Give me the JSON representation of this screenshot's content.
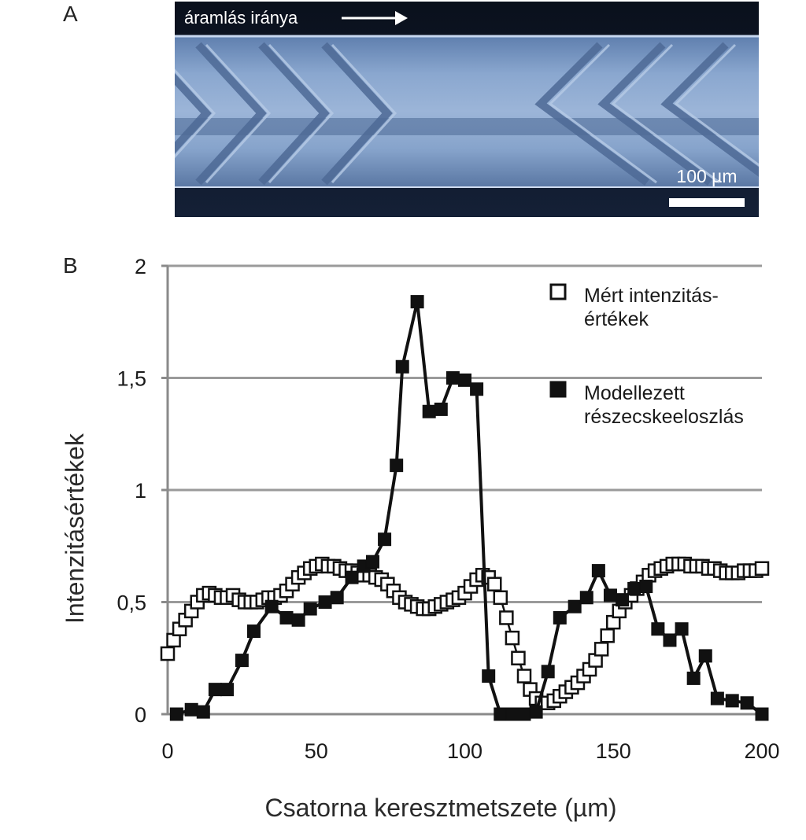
{
  "panel_a": {
    "label": "A",
    "flow_label": "áramlás iránya",
    "scale_bar_label": "100 µm"
  },
  "panel_b": {
    "label": "B"
  },
  "colors": {
    "channel_dark": "#0c1424",
    "channel_blue": "#7f9dc6",
    "series_line": "#111111",
    "grid": "#9a9a9a"
  },
  "chart_data": {
    "type": "line",
    "title": "",
    "xlabel": "Csatorna keresztmetszete (µm)",
    "ylabel": "Intenzitásértékek",
    "xlim": [
      0,
      200
    ],
    "ylim": [
      0,
      2
    ],
    "x_ticks": [
      0,
      50,
      100,
      150,
      200
    ],
    "y_ticks": [
      0,
      0.5,
      1,
      1.5,
      2
    ],
    "x_tick_labels": [
      "0",
      "50",
      "100",
      "150",
      "200"
    ],
    "y_tick_labels": [
      "0",
      "0,5",
      "1",
      "1,5",
      "2"
    ],
    "grid": "horizontal",
    "legend_position": "top-right",
    "series": [
      {
        "name": "Mért intenzitás-értékek",
        "marker": "open-square",
        "x": [
          0,
          2,
          4,
          6,
          8,
          10,
          12,
          14,
          16,
          18,
          20,
          22,
          24,
          26,
          28,
          30,
          32,
          34,
          36,
          38,
          40,
          42,
          44,
          46,
          48,
          50,
          52,
          54,
          56,
          58,
          60,
          62,
          64,
          66,
          68,
          70,
          72,
          74,
          76,
          78,
          80,
          82,
          84,
          86,
          88,
          90,
          92,
          94,
          96,
          98,
          100,
          102,
          104,
          106,
          108,
          110,
          112,
          114,
          116,
          118,
          120,
          122,
          124,
          126,
          128,
          130,
          132,
          134,
          136,
          138,
          140,
          142,
          144,
          146,
          148,
          150,
          152,
          154,
          156,
          158,
          160,
          162,
          164,
          166,
          168,
          170,
          172,
          174,
          176,
          178,
          180,
          182,
          184,
          186,
          188,
          190,
          192,
          194,
          196,
          198,
          200
        ],
        "y": [
          0.27,
          0.33,
          0.38,
          0.42,
          0.46,
          0.5,
          0.53,
          0.54,
          0.53,
          0.52,
          0.52,
          0.53,
          0.51,
          0.5,
          0.5,
          0.5,
          0.51,
          0.52,
          0.52,
          0.53,
          0.55,
          0.58,
          0.61,
          0.63,
          0.65,
          0.66,
          0.67,
          0.66,
          0.66,
          0.65,
          0.64,
          0.64,
          0.63,
          0.62,
          0.62,
          0.61,
          0.6,
          0.58,
          0.55,
          0.52,
          0.5,
          0.49,
          0.48,
          0.47,
          0.47,
          0.48,
          0.49,
          0.5,
          0.51,
          0.52,
          0.54,
          0.57,
          0.6,
          0.62,
          0.61,
          0.58,
          0.52,
          0.43,
          0.34,
          0.25,
          0.17,
          0.11,
          0.07,
          0.05,
          0.05,
          0.06,
          0.08,
          0.1,
          0.12,
          0.14,
          0.17,
          0.2,
          0.24,
          0.29,
          0.35,
          0.41,
          0.46,
          0.5,
          0.53,
          0.56,
          0.59,
          0.62,
          0.64,
          0.65,
          0.66,
          0.67,
          0.67,
          0.67,
          0.66,
          0.66,
          0.66,
          0.65,
          0.65,
          0.64,
          0.63,
          0.63,
          0.63,
          0.64,
          0.64,
          0.64,
          0.65
        ]
      },
      {
        "name": "Modellezett részecskeeloszlás",
        "marker": "filled-square",
        "x": [
          3,
          8,
          12,
          16,
          20,
          25,
          29,
          35,
          40,
          44,
          48,
          53,
          57,
          62,
          66,
          69,
          73,
          77,
          79,
          84,
          88,
          92,
          96,
          100,
          104,
          108,
          112,
          116,
          120,
          124,
          128,
          132,
          137,
          141,
          145,
          149,
          153,
          157,
          161,
          165,
          169,
          173,
          177,
          181,
          185,
          190,
          195,
          200
        ],
        "y": [
          0.0,
          0.02,
          0.01,
          0.11,
          0.11,
          0.24,
          0.37,
          0.48,
          0.43,
          0.42,
          0.47,
          0.5,
          0.52,
          0.61,
          0.66,
          0.68,
          0.78,
          1.11,
          1.55,
          1.84,
          1.35,
          1.36,
          1.5,
          1.49,
          1.45,
          0.17,
          0.0,
          0.0,
          0.0,
          0.01,
          0.19,
          0.43,
          0.48,
          0.52,
          0.64,
          0.53,
          0.51,
          0.56,
          0.57,
          0.38,
          0.33,
          0.38,
          0.16,
          0.26,
          0.07,
          0.06,
          0.05,
          0.0
        ]
      }
    ]
  }
}
